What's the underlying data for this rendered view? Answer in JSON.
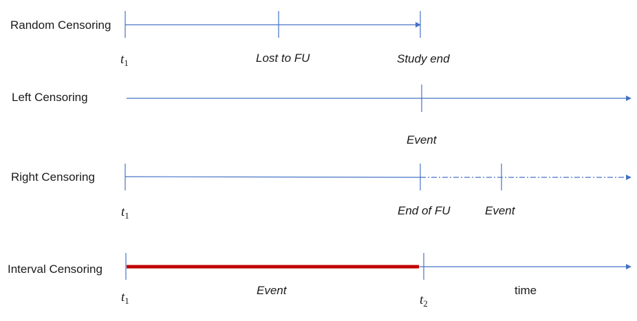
{
  "rows": {
    "random": {
      "label": "Random Censoring",
      "t1": "t",
      "t1_sub": "1",
      "lost": "Lost to FU",
      "study_end": "Study end"
    },
    "left": {
      "label": "Left Censoring",
      "event": "Event"
    },
    "right": {
      "label": "Right Censoring",
      "t1": "t",
      "t1_sub": "1",
      "end_fu": "End of FU",
      "event": "Event"
    },
    "interval": {
      "label": "Interval Censoring",
      "t1": "t",
      "t1_sub": "1",
      "event": "Event",
      "t2": "t",
      "t2_sub": "2",
      "time": "time"
    }
  },
  "colors": {
    "axis": "#4472c4",
    "interval_bar": "#c00000",
    "text": "#1a1a1a"
  }
}
